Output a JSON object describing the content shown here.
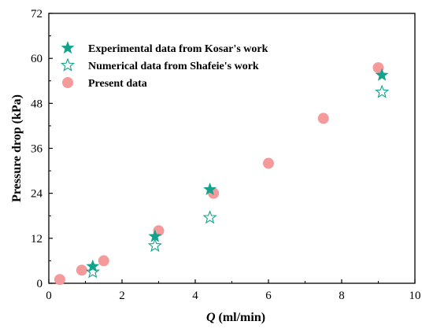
{
  "chart_data": {
    "type": "scatter",
    "title": "",
    "xlabel_var": "Q",
    "xlabel_unit": " (ml/min)",
    "ylabel": "Pressure drop (kPa)",
    "xlim": [
      0,
      10
    ],
    "ylim": [
      0,
      72
    ],
    "xticks": [
      0,
      2,
      4,
      6,
      8,
      10
    ],
    "yticks": [
      0,
      12,
      24,
      36,
      48,
      60,
      72
    ],
    "grid": false,
    "legend_position": "top-left",
    "series": [
      {
        "name": "Experimental data from Kosar's work",
        "marker": "filled-star",
        "color": "#12a38d",
        "x": [
          1.2,
          2.9,
          4.4,
          9.1
        ],
        "y": [
          4.5,
          12.5,
          25.0,
          55.5
        ]
      },
      {
        "name": "Numerical data from Shafeie's work",
        "marker": "hollow-star",
        "color": "#12a38d",
        "x": [
          1.2,
          2.9,
          4.4,
          9.1
        ],
        "y": [
          3.0,
          10.0,
          17.5,
          51.0
        ]
      },
      {
        "name": "Present data",
        "marker": "circle",
        "color": "#f49a9a",
        "x": [
          0.3,
          0.9,
          1.5,
          3.0,
          4.5,
          6.0,
          7.5,
          9.0
        ],
        "y": [
          1.0,
          3.5,
          6.0,
          14.0,
          24.0,
          32.0,
          44.0,
          57.5
        ]
      }
    ]
  }
}
